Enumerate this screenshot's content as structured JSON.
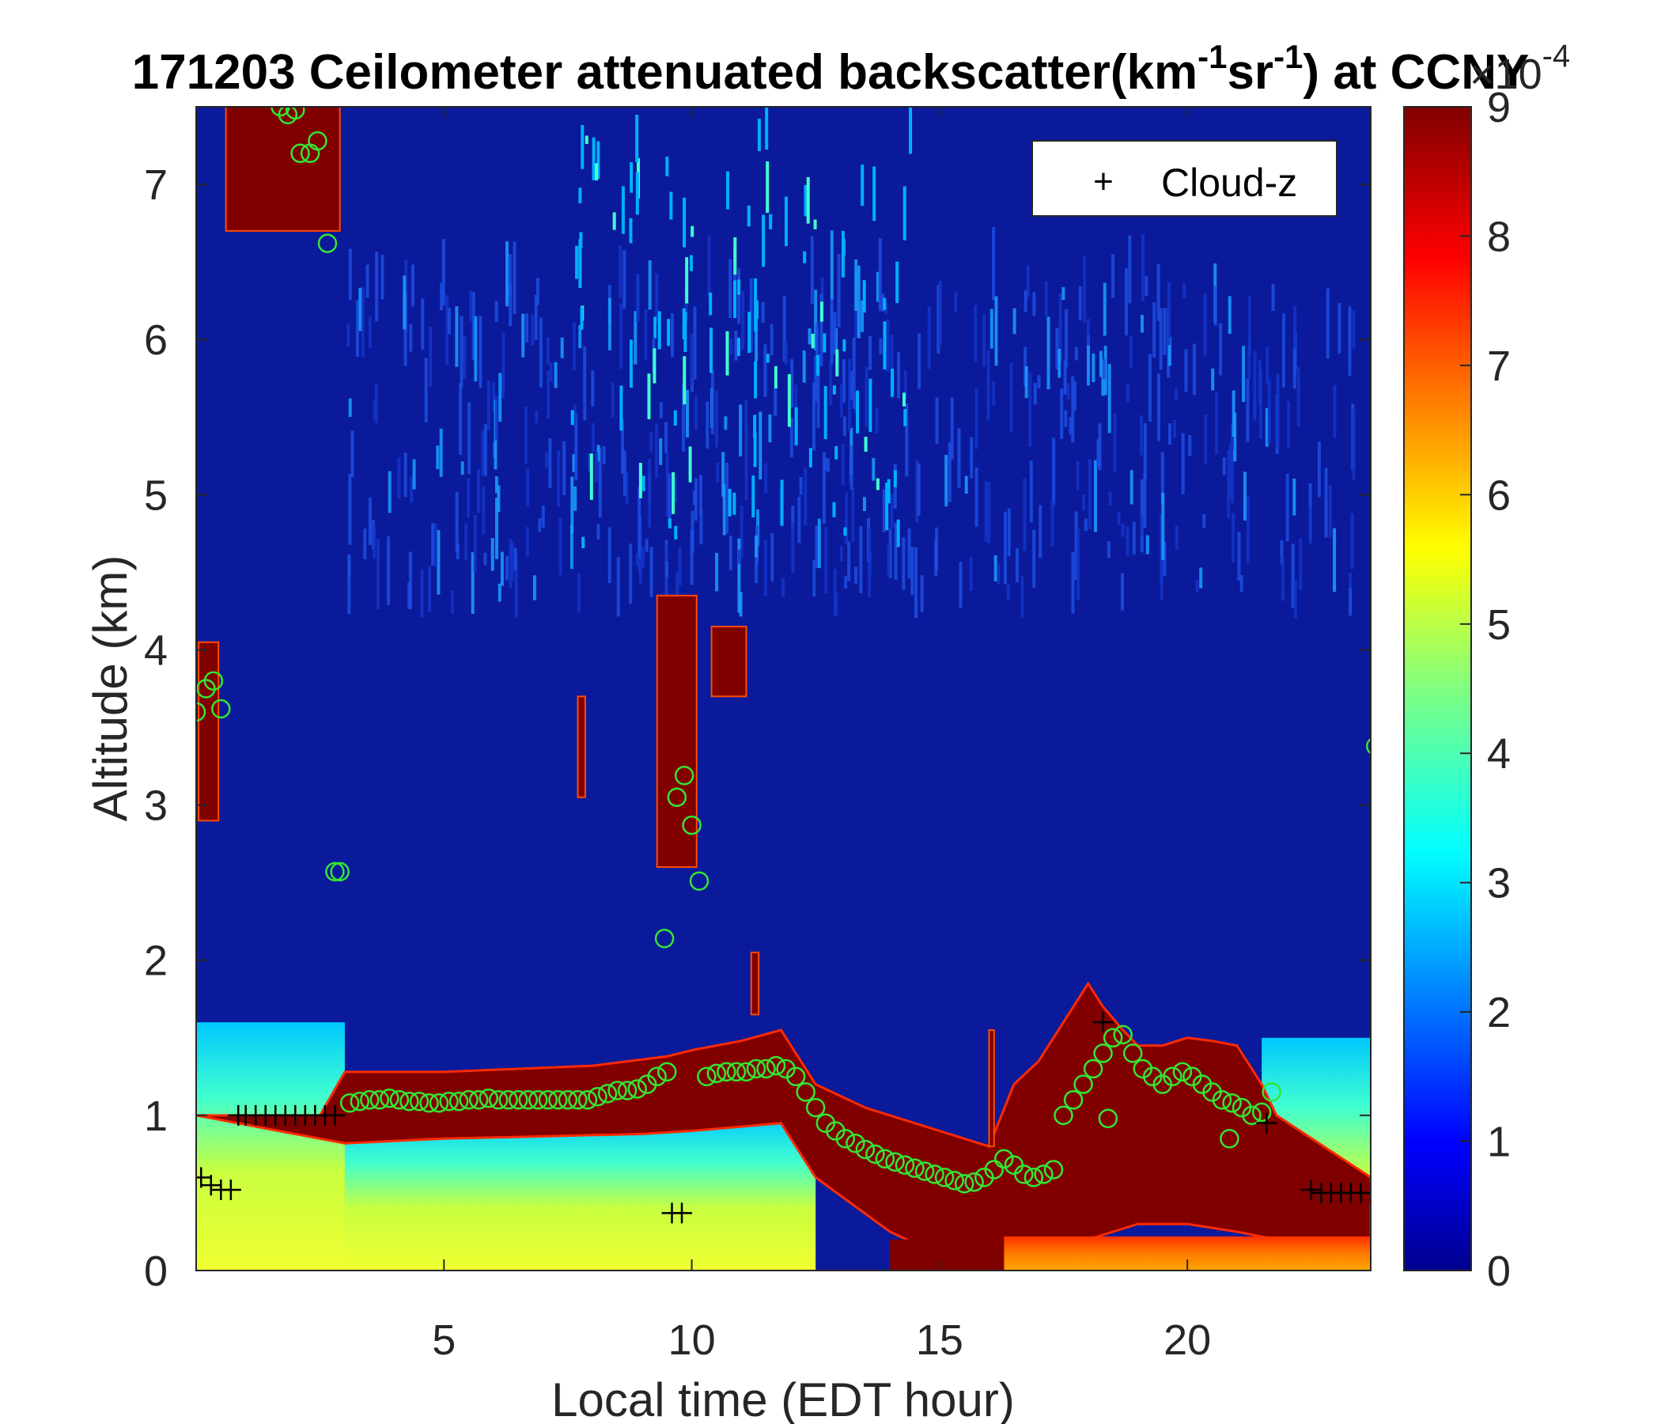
{
  "chart_data": {
    "type": "heatmap",
    "title_main": "171203 Ceilometer attenuated backscatter(km",
    "title_sup1": "-1",
    "title_mid": "sr",
    "title_sup2": "-1",
    "title_end": ") at CCNY",
    "xlabel": "Local time (EDT hour)",
    "ylabel": "Altitude (km)",
    "xlim": [
      0,
      23.7
    ],
    "ylim": [
      0,
      7.5
    ],
    "xticks": [
      "5",
      "10",
      "15",
      "20"
    ],
    "xtick_values": [
      5,
      10,
      15,
      20
    ],
    "yticks": [
      "0",
      "1",
      "2",
      "3",
      "4",
      "5",
      "6",
      "7"
    ],
    "ytick_values": [
      0,
      1,
      2,
      3,
      4,
      5,
      6,
      7
    ],
    "colorbar": {
      "min": 0,
      "max": 9,
      "ticks": [
        "0",
        "1",
        "2",
        "3",
        "4",
        "5",
        "6",
        "7",
        "8",
        "9"
      ],
      "tick_values": [
        0,
        1,
        2,
        3,
        4,
        5,
        6,
        7,
        8,
        9
      ],
      "multiplier_base": "×10",
      "multiplier_exp": "-4",
      "colormap": "jet"
    },
    "legend": {
      "placement": "top-right",
      "entries": [
        {
          "marker": "+",
          "label": "Cloud-z"
        }
      ]
    },
    "pbl_layer_top": {
      "x": [
        0,
        2.5,
        3,
        5,
        8,
        9.5,
        10,
        11,
        11.8,
        12.5,
        13.5,
        14.5,
        15.5,
        16,
        16.5,
        17,
        17.5,
        18,
        18.3,
        18.7,
        19,
        19.5,
        20,
        20.5,
        21,
        21.5,
        21.8,
        23.7
      ],
      "y": [
        1.0,
        1.0,
        1.28,
        1.28,
        1.32,
        1.38,
        1.42,
        1.48,
        1.55,
        1.2,
        1.05,
        0.95,
        0.85,
        0.8,
        1.2,
        1.35,
        1.6,
        1.85,
        1.7,
        1.55,
        1.45,
        1.45,
        1.5,
        1.48,
        1.45,
        1.2,
        1.0,
        0.6
      ]
    },
    "pbl_layer_bottom": {
      "x": [
        0,
        3,
        5,
        9,
        10,
        11.8,
        12.5,
        14,
        15,
        16,
        17,
        18,
        19,
        20,
        21,
        21.8,
        23.7
      ],
      "y": [
        1.0,
        0.82,
        0.85,
        0.88,
        0.9,
        0.95,
        0.6,
        0.25,
        0.1,
        0.05,
        0.05,
        0.2,
        0.3,
        0.3,
        0.25,
        0.2,
        0.15
      ]
    },
    "cloud_patches": [
      {
        "x0": 0.05,
        "x1": 0.45,
        "y0": 2.9,
        "y1": 4.05
      },
      {
        "x0": 0.6,
        "x1": 2.9,
        "y0": 6.7,
        "y1": 7.5
      },
      {
        "x0": 7.7,
        "x1": 7.85,
        "y0": 3.05,
        "y1": 3.7
      },
      {
        "x0": 9.3,
        "x1": 10.1,
        "y0": 2.6,
        "y1": 4.35
      },
      {
        "x0": 10.4,
        "x1": 11.1,
        "y0": 3.7,
        "y1": 4.15
      },
      {
        "x0": 11.2,
        "x1": 11.35,
        "y0": 1.65,
        "y1": 2.05
      },
      {
        "x0": 16.0,
        "x1": 16.1,
        "y0": 0.8,
        "y1": 1.55
      }
    ],
    "cloud_z": {
      "x": [
        0.1,
        0.3,
        0.5,
        0.7,
        0.85,
        1.0,
        1.2,
        1.4,
        1.6,
        1.8,
        2.0,
        2.2,
        2.4,
        2.6,
        2.8,
        9.6,
        9.8,
        18.3,
        21.6,
        22.5,
        22.7,
        22.9,
        23.1,
        23.3,
        23.5,
        23.7
      ],
      "y": [
        0.6,
        0.55,
        0.52,
        0.52,
        1.0,
        1.0,
        1.0,
        1.0,
        1.0,
        1.0,
        1.0,
        1.0,
        1.0,
        1.0,
        1.0,
        0.37,
        0.37,
        1.6,
        0.95,
        0.52,
        0.5,
        0.5,
        0.5,
        0.5,
        0.5,
        0.5
      ]
    },
    "pbl_circles": {
      "x": [
        0.0,
        0.2,
        0.35,
        0.5,
        1.7,
        1.85,
        2.0,
        2.1,
        2.3,
        2.45,
        2.65,
        2.8,
        2.9,
        9.45,
        9.7,
        9.85,
        10.0,
        10.15,
        3.1,
        3.3,
        3.5,
        3.7,
        3.9,
        4.1,
        4.3,
        4.5,
        4.7,
        4.9,
        5.1,
        5.3,
        5.5,
        5.7,
        5.9,
        6.1,
        6.3,
        6.5,
        6.7,
        6.9,
        7.1,
        7.3,
        7.5,
        7.7,
        7.9,
        8.1,
        8.3,
        8.5,
        8.7,
        8.9,
        9.1,
        9.3,
        9.5,
        10.3,
        10.5,
        10.7,
        10.9,
        11.1,
        11.3,
        11.5,
        11.7,
        11.9,
        12.1,
        12.3,
        12.5,
        12.7,
        12.9,
        13.1,
        13.3,
        13.5,
        13.7,
        13.9,
        14.1,
        14.3,
        14.5,
        14.7,
        14.9,
        15.1,
        15.3,
        15.5,
        15.7,
        15.9,
        16.1,
        16.3,
        16.5,
        16.7,
        16.9,
        17.1,
        17.3,
        17.5,
        17.7,
        17.9,
        18.1,
        18.3,
        18.5,
        18.7,
        18.9,
        19.1,
        19.3,
        19.5,
        19.7,
        19.9,
        20.1,
        20.3,
        20.5,
        20.7,
        20.9,
        21.1,
        21.3,
        21.5,
        21.7,
        18.4,
        20.85,
        23.8
      ],
      "y": [
        3.6,
        3.75,
        3.8,
        3.62,
        7.5,
        7.45,
        7.48,
        7.2,
        7.2,
        7.28,
        6.62,
        2.57,
        2.57,
        2.14,
        3.05,
        3.19,
        2.87,
        2.51,
        1.08,
        1.09,
        1.1,
        1.1,
        1.11,
        1.1,
        1.09,
        1.09,
        1.08,
        1.08,
        1.09,
        1.09,
        1.1,
        1.1,
        1.11,
        1.1,
        1.1,
        1.1,
        1.1,
        1.1,
        1.1,
        1.1,
        1.1,
        1.1,
        1.1,
        1.12,
        1.14,
        1.16,
        1.16,
        1.17,
        1.2,
        1.25,
        1.28,
        1.25,
        1.27,
        1.28,
        1.28,
        1.28,
        1.3,
        1.3,
        1.32,
        1.3,
        1.25,
        1.15,
        1.05,
        0.95,
        0.9,
        0.85,
        0.82,
        0.78,
        0.75,
        0.72,
        0.7,
        0.68,
        0.66,
        0.64,
        0.62,
        0.6,
        0.58,
        0.56,
        0.57,
        0.6,
        0.65,
        0.72,
        0.68,
        0.62,
        0.6,
        0.62,
        0.65,
        1.0,
        1.1,
        1.2,
        1.3,
        1.4,
        1.5,
        1.52,
        1.4,
        1.3,
        1.25,
        1.2,
        1.25,
        1.28,
        1.25,
        1.2,
        1.15,
        1.1,
        1.08,
        1.05,
        1.0,
        1.02,
        1.15,
        0.98,
        0.85,
        3.38
      ]
    }
  }
}
